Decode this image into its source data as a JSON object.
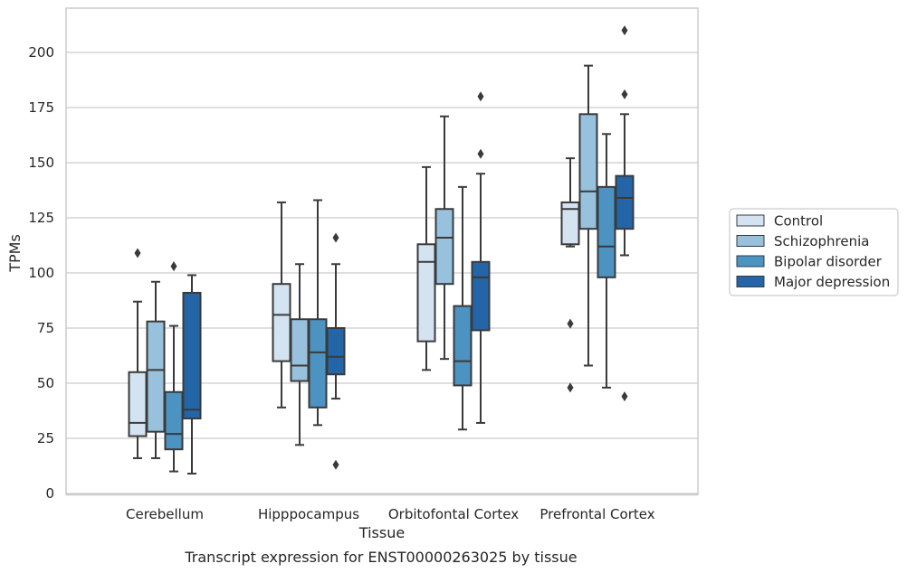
{
  "caption": "Transcript expression for ENST00000263025 by tissue",
  "colors": {
    "Control": "#d4e3f2",
    "Schizophrenia": "#97c1dc",
    "Bipolar disorder": "#4c93c2",
    "Major depression": "#2465a8",
    "box_edge": "#3a3a3a",
    "grid": "#cccccc"
  },
  "chart_data": {
    "type": "boxplot",
    "title": "",
    "xlabel": "Tissue",
    "ylabel": "TPMs",
    "ylim": [
      0,
      220
    ],
    "yticks": [
      0,
      25,
      50,
      75,
      100,
      125,
      150,
      175,
      200
    ],
    "grid": "horizontal",
    "legend_position": "right",
    "categories": [
      "Cerebellum",
      "Hipppocampus",
      "Orbitofontal Cortex",
      "Prefrontal Cortex"
    ],
    "series": [
      {
        "name": "Control",
        "boxes": [
          {
            "whislo": 16,
            "q1": 26,
            "med": 32,
            "q3": 55,
            "whishi": 87,
            "fliers": [
              109
            ]
          },
          {
            "whislo": 39,
            "q1": 60,
            "med": 81,
            "q3": 95,
            "whishi": 132,
            "fliers": []
          },
          {
            "whislo": 56,
            "q1": 69,
            "med": 105,
            "q3": 113,
            "whishi": 148,
            "fliers": []
          },
          {
            "whislo": 112,
            "q1": 113,
            "med": 129,
            "q3": 132,
            "whishi": 152,
            "fliers": [
              77,
              48
            ]
          }
        ]
      },
      {
        "name": "Schizophrenia",
        "boxes": [
          {
            "whislo": 16,
            "q1": 28,
            "med": 56,
            "q3": 78,
            "whishi": 96,
            "fliers": []
          },
          {
            "whislo": 22,
            "q1": 51,
            "med": 58,
            "q3": 79,
            "whishi": 104,
            "fliers": []
          },
          {
            "whislo": 61,
            "q1": 95,
            "med": 116,
            "q3": 129,
            "whishi": 171,
            "fliers": []
          },
          {
            "whislo": 58,
            "q1": 120,
            "med": 137,
            "q3": 172,
            "whishi": 194,
            "fliers": []
          }
        ]
      },
      {
        "name": "Bipolar disorder",
        "boxes": [
          {
            "whislo": 10,
            "q1": 20,
            "med": 27,
            "q3": 46,
            "whishi": 76,
            "fliers": [
              103
            ]
          },
          {
            "whislo": 31,
            "q1": 39,
            "med": 64,
            "q3": 79,
            "whishi": 133,
            "fliers": []
          },
          {
            "whislo": 29,
            "q1": 49,
            "med": 60,
            "q3": 85,
            "whishi": 139,
            "fliers": []
          },
          {
            "whislo": 48,
            "q1": 98,
            "med": 112,
            "q3": 139,
            "whishi": 163,
            "fliers": []
          }
        ]
      },
      {
        "name": "Major depression",
        "boxes": [
          {
            "whislo": 9,
            "q1": 34,
            "med": 38,
            "q3": 91,
            "whishi": 99,
            "fliers": []
          },
          {
            "whislo": 43,
            "q1": 54,
            "med": 62,
            "q3": 75,
            "whishi": 104,
            "fliers": [
              116,
              13
            ]
          },
          {
            "whislo": 32,
            "q1": 74,
            "med": 98,
            "q3": 105,
            "whishi": 145,
            "fliers": [
              154,
              180
            ]
          },
          {
            "whislo": 108,
            "q1": 120,
            "med": 134,
            "q3": 144,
            "whishi": 172,
            "fliers": [
              181,
              210,
              44
            ]
          }
        ]
      }
    ]
  }
}
